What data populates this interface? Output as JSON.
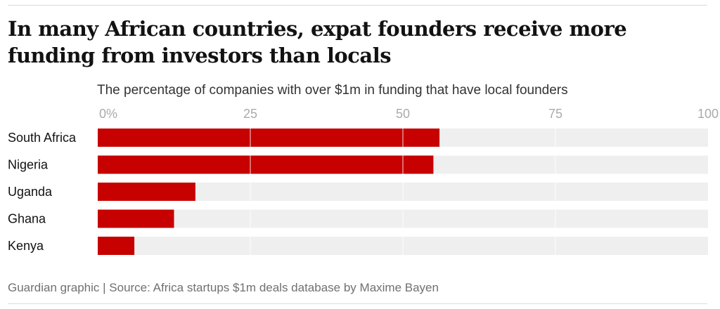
{
  "title": "In many African countries, expat founders receive more funding from investors than locals",
  "source": "Guardian graphic | Source: Africa startups $1m deals database by Maxime Bayen",
  "colors": {
    "bar": "#c70000",
    "track": "#efefef",
    "grid": "#ffffff",
    "tick_text": "#aaaaaa"
  },
  "chart_data": {
    "type": "bar",
    "orientation": "horizontal",
    "title": "The percentage of companies with over $1m in funding that have local founders",
    "categories": [
      "South Africa",
      "Nigeria",
      "Uganda",
      "Ghana",
      "Kenya"
    ],
    "values": [
      56,
      55,
      16,
      12.5,
      6
    ],
    "xlim": [
      0,
      100
    ],
    "ticks": [
      0,
      25,
      50,
      75,
      100
    ],
    "tick_labels": [
      "0%",
      "25",
      "50",
      "75",
      "100"
    ],
    "grid": true
  }
}
